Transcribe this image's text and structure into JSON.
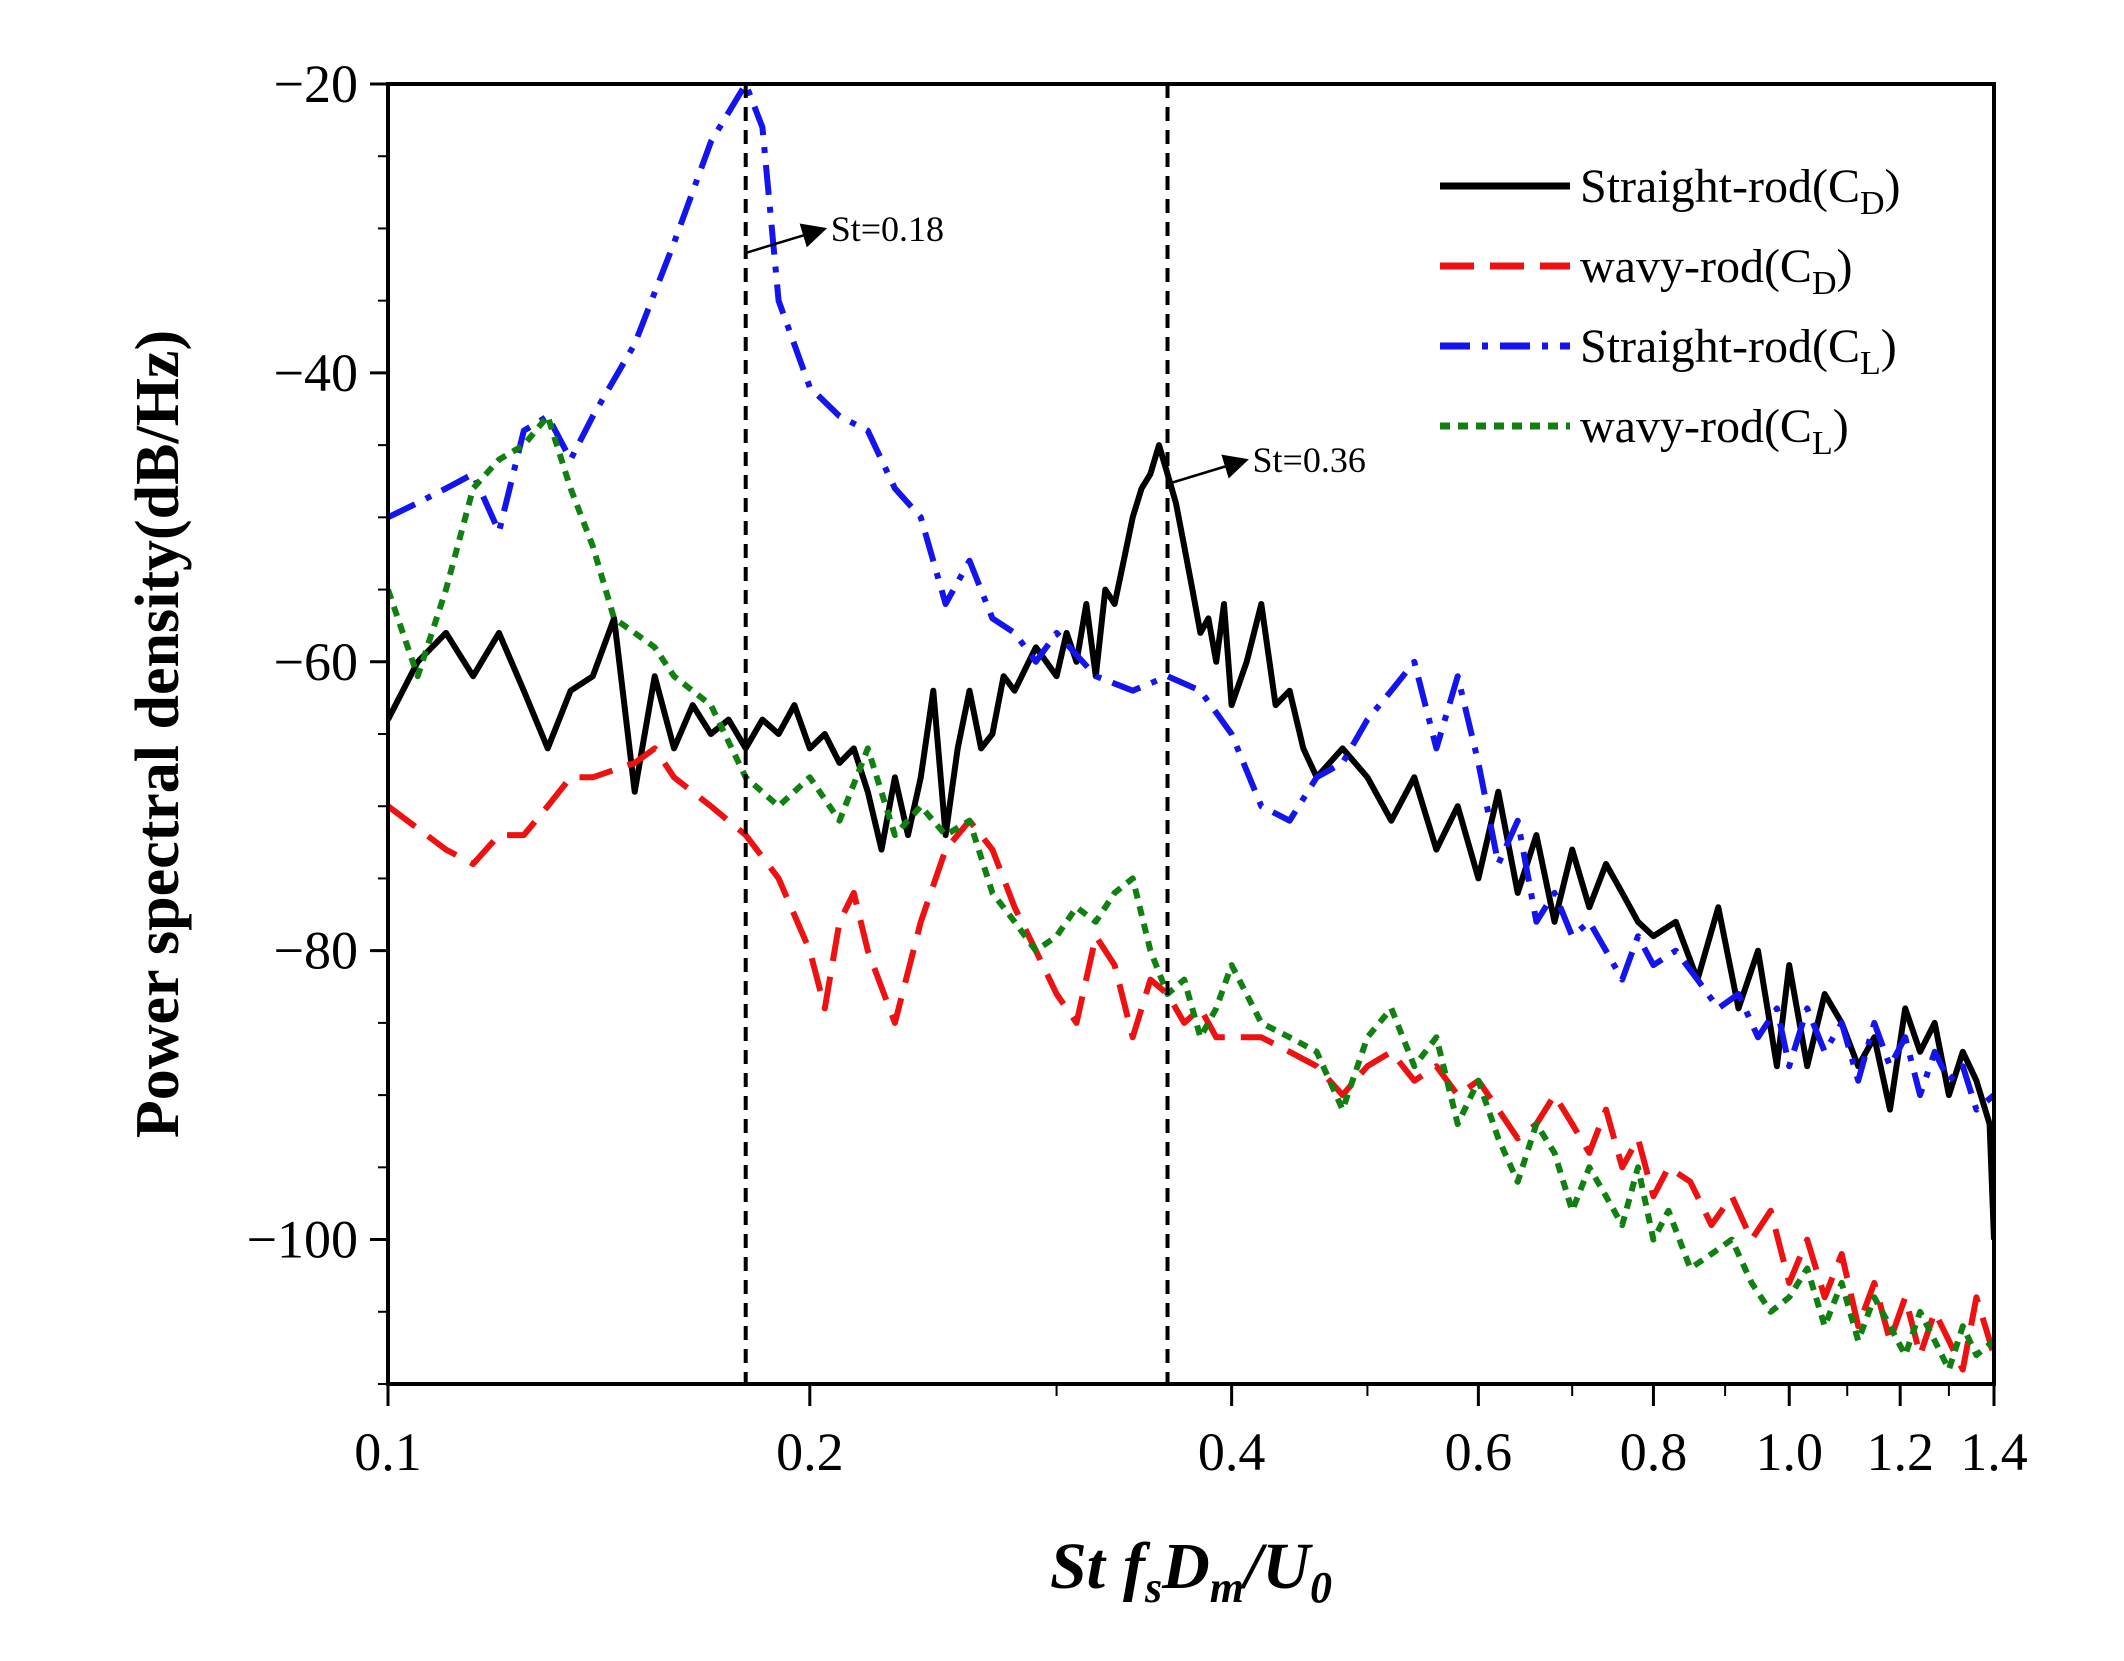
{
  "chart_data": {
    "type": "line",
    "title": "",
    "xlabel_parts": {
      "st": "St",
      "f": "f",
      "f_sub": "s",
      "d": "D",
      "d_sub": "m",
      "u": "/U",
      "u_sub": "0"
    },
    "ylabel": "Power spectral density(dB/Hz)",
    "x_scale": "log",
    "xlim": [
      0.1,
      1.4
    ],
    "ylim": [
      -110,
      -20
    ],
    "x_ticks": [
      0.1,
      0.2,
      0.4,
      0.6,
      0.8,
      1.0,
      1.2,
      1.4
    ],
    "x_tick_labels": [
      "0.1",
      "0.2",
      "0.4",
      "0.6",
      "0.8",
      "1.0",
      "1.2",
      "1.4"
    ],
    "y_ticks": [
      -20,
      -40,
      -60,
      -80,
      -100
    ],
    "y_tick_labels": [
      "−20",
      "−40",
      "−60",
      "−80",
      "−100"
    ],
    "grid": false,
    "legend_position": "top-right",
    "vlines": [
      0.18,
      0.36
    ],
    "annotations": [
      {
        "text": "St=0.18",
        "x": 0.18,
        "y": -31
      },
      {
        "text": "St=0.36",
        "x": 0.36,
        "y": -47
      }
    ],
    "series": [
      {
        "name": "Straight-rod(C",
        "sub": "D",
        "color": "#000000",
        "style": "solid",
        "x": [
          0.1,
          0.105,
          0.11,
          0.115,
          0.12,
          0.125,
          0.13,
          0.135,
          0.14,
          0.145,
          0.15,
          0.155,
          0.16,
          0.165,
          0.17,
          0.175,
          0.18,
          0.185,
          0.19,
          0.195,
          0.2,
          0.205,
          0.21,
          0.215,
          0.22,
          0.225,
          0.23,
          0.235,
          0.24,
          0.245,
          0.25,
          0.255,
          0.26,
          0.265,
          0.27,
          0.275,
          0.28,
          0.29,
          0.3,
          0.305,
          0.31,
          0.315,
          0.32,
          0.325,
          0.33,
          0.335,
          0.34,
          0.345,
          0.35,
          0.355,
          0.36,
          0.365,
          0.37,
          0.375,
          0.38,
          0.385,
          0.39,
          0.395,
          0.4,
          0.41,
          0.42,
          0.43,
          0.44,
          0.45,
          0.46,
          0.48,
          0.5,
          0.52,
          0.54,
          0.56,
          0.58,
          0.6,
          0.62,
          0.64,
          0.66,
          0.68,
          0.7,
          0.72,
          0.74,
          0.76,
          0.78,
          0.8,
          0.83,
          0.86,
          0.89,
          0.92,
          0.95,
          0.98,
          1.0,
          1.03,
          1.06,
          1.09,
          1.12,
          1.15,
          1.18,
          1.21,
          1.24,
          1.27,
          1.3,
          1.33,
          1.36,
          1.39,
          1.4
        ],
        "y": [
          -64,
          -60,
          -58,
          -61,
          -58,
          -62,
          -66,
          -62,
          -61,
          -57,
          -69,
          -61,
          -66,
          -63,
          -65,
          -64,
          -66,
          -64,
          -65,
          -63,
          -66,
          -65,
          -67,
          -66,
          -69,
          -73,
          -68,
          -72,
          -68,
          -62,
          -72,
          -66,
          -62,
          -66,
          -65,
          -61,
          -62,
          -59,
          -61,
          -58,
          -60,
          -56,
          -61,
          -55,
          -56,
          -53,
          -50,
          -48,
          -47,
          -45,
          -47,
          -49,
          -52,
          -55,
          -58,
          -57,
          -60,
          -56,
          -63,
          -60,
          -56,
          -63,
          -62,
          -66,
          -68,
          -66,
          -68,
          -71,
          -68,
          -73,
          -70,
          -75,
          -69,
          -76,
          -72,
          -78,
          -73,
          -77,
          -74,
          -76,
          -78,
          -79,
          -78,
          -82,
          -77,
          -84,
          -80,
          -88,
          -81,
          -88,
          -83,
          -85,
          -88,
          -86,
          -91,
          -84,
          -87,
          -85,
          -90,
          -87,
          -89,
          -92,
          -100
        ]
      },
      {
        "name": "wavy-rod(C",
        "sub": "D",
        "color": "#ee1111",
        "style": "dash",
        "x": [
          0.1,
          0.11,
          0.115,
          0.12,
          0.125,
          0.13,
          0.135,
          0.14,
          0.15,
          0.155,
          0.16,
          0.17,
          0.18,
          0.19,
          0.2,
          0.205,
          0.21,
          0.215,
          0.22,
          0.23,
          0.24,
          0.25,
          0.26,
          0.27,
          0.28,
          0.29,
          0.3,
          0.31,
          0.32,
          0.33,
          0.34,
          0.35,
          0.36,
          0.37,
          0.38,
          0.39,
          0.4,
          0.42,
          0.44,
          0.46,
          0.48,
          0.5,
          0.52,
          0.54,
          0.56,
          0.58,
          0.6,
          0.62,
          0.64,
          0.66,
          0.68,
          0.7,
          0.72,
          0.74,
          0.76,
          0.78,
          0.8,
          0.82,
          0.85,
          0.88,
          0.91,
          0.94,
          0.97,
          1.0,
          1.03,
          1.06,
          1.09,
          1.12,
          1.15,
          1.18,
          1.21,
          1.24,
          1.27,
          1.3,
          1.33,
          1.36,
          1.4
        ],
        "y": [
          -70,
          -73,
          -74,
          -72,
          -72,
          -70,
          -68,
          -68,
          -67,
          -66,
          -68,
          -70,
          -72,
          -75,
          -80,
          -84,
          -78,
          -76,
          -80,
          -85,
          -78,
          -73,
          -71,
          -73,
          -77,
          -80,
          -83,
          -85,
          -79,
          -81,
          -86,
          -82,
          -83,
          -85,
          -84,
          -86,
          -86,
          -86,
          -87,
          -88,
          -90,
          -88,
          -87,
          -89,
          -88,
          -90,
          -89,
          -91,
          -93,
          -92,
          -90,
          -92,
          -94,
          -91,
          -95,
          -93,
          -97,
          -95,
          -96,
          -99,
          -97,
          -100,
          -98,
          -103,
          -100,
          -104,
          -101,
          -106,
          -103,
          -107,
          -104,
          -108,
          -105,
          -107,
          -109,
          -104,
          -108
        ]
      },
      {
        "name": "Straight-rod(C",
        "sub": "L",
        "color": "#1414ee",
        "style": "dashdot",
        "x": [
          0.1,
          0.105,
          0.11,
          0.115,
          0.12,
          0.125,
          0.13,
          0.135,
          0.14,
          0.15,
          0.16,
          0.17,
          0.18,
          0.185,
          0.19,
          0.2,
          0.21,
          0.22,
          0.23,
          0.24,
          0.25,
          0.26,
          0.27,
          0.28,
          0.29,
          0.3,
          0.32,
          0.34,
          0.36,
          0.38,
          0.4,
          0.42,
          0.44,
          0.46,
          0.48,
          0.5,
          0.52,
          0.54,
          0.56,
          0.58,
          0.6,
          0.62,
          0.64,
          0.66,
          0.68,
          0.7,
          0.72,
          0.74,
          0.76,
          0.78,
          0.8,
          0.83,
          0.86,
          0.89,
          0.92,
          0.95,
          0.98,
          1.0,
          1.03,
          1.06,
          1.09,
          1.12,
          1.15,
          1.18,
          1.21,
          1.24,
          1.27,
          1.3,
          1.33,
          1.36,
          1.4
        ],
        "y": [
          -50,
          -49,
          -48,
          -47,
          -51,
          -44,
          -43,
          -46,
          -43,
          -38,
          -31,
          -24,
          -20,
          -23,
          -35,
          -41,
          -43,
          -44,
          -48,
          -50,
          -56,
          -53,
          -57,
          -58,
          -60,
          -58,
          -61,
          -62,
          -61,
          -62,
          -65,
          -70,
          -71,
          -68,
          -67,
          -64,
          -62,
          -60,
          -66,
          -61,
          -67,
          -74,
          -71,
          -78,
          -76,
          -79,
          -78,
          -80,
          -82,
          -79,
          -81,
          -80,
          -82,
          -84,
          -83,
          -86,
          -84,
          -88,
          -84,
          -87,
          -85,
          -89,
          -85,
          -88,
          -86,
          -90,
          -87,
          -89,
          -88,
          -91,
          -90
        ]
      },
      {
        "name": "wavy-rod(C",
        "sub": "L",
        "color": "#108010",
        "style": "dot",
        "x": [
          0.1,
          0.105,
          0.11,
          0.115,
          0.12,
          0.125,
          0.13,
          0.135,
          0.14,
          0.145,
          0.15,
          0.155,
          0.16,
          0.17,
          0.18,
          0.19,
          0.2,
          0.21,
          0.22,
          0.23,
          0.24,
          0.25,
          0.26,
          0.27,
          0.28,
          0.29,
          0.3,
          0.31,
          0.32,
          0.33,
          0.34,
          0.35,
          0.36,
          0.37,
          0.38,
          0.39,
          0.4,
          0.42,
          0.44,
          0.46,
          0.48,
          0.5,
          0.52,
          0.54,
          0.56,
          0.58,
          0.6,
          0.62,
          0.64,
          0.66,
          0.68,
          0.7,
          0.72,
          0.74,
          0.76,
          0.78,
          0.8,
          0.82,
          0.85,
          0.88,
          0.91,
          0.94,
          0.97,
          1.0,
          1.03,
          1.06,
          1.09,
          1.12,
          1.15,
          1.18,
          1.21,
          1.24,
          1.27,
          1.3,
          1.33,
          1.36,
          1.4
        ],
        "y": [
          -55,
          -61,
          -55,
          -48,
          -46,
          -45,
          -43,
          -48,
          -52,
          -57,
          -58,
          -59,
          -61,
          -63,
          -68,
          -70,
          -68,
          -71,
          -66,
          -72,
          -70,
          -72,
          -71,
          -76,
          -78,
          -80,
          -79,
          -77,
          -78,
          -76,
          -75,
          -80,
          -83,
          -82,
          -86,
          -84,
          -81,
          -85,
          -86,
          -87,
          -91,
          -86,
          -84,
          -88,
          -86,
          -92,
          -89,
          -93,
          -96,
          -92,
          -94,
          -98,
          -95,
          -97,
          -99,
          -95,
          -100,
          -98,
          -102,
          -101,
          -100,
          -103,
          -105,
          -104,
          -102,
          -106,
          -103,
          -107,
          -104,
          -106,
          -108,
          -105,
          -107,
          -109,
          -106,
          -108,
          -107
        ]
      }
    ]
  }
}
